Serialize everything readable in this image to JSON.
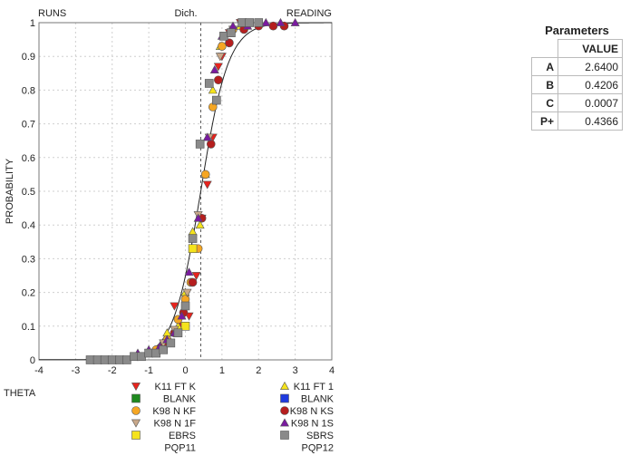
{
  "chart_data": {
    "type": "scatter",
    "title": "",
    "corner_labels": {
      "left": "RUNS",
      "center": "Dich.",
      "right": "READING"
    },
    "xlabel": "THETA",
    "ylabel": "PROBABILITY",
    "xlim": [
      -4,
      4
    ],
    "ylim": [
      0,
      1
    ],
    "x_ticks": [
      "-4",
      "-3",
      "-2",
      "-1",
      "0",
      "1",
      "2",
      "3",
      "4"
    ],
    "y_ticks": [
      "0",
      "0.1",
      "0.2",
      "0.3",
      "0.4",
      "0.5",
      "0.6",
      "0.7",
      "0.8",
      "0.9",
      "1"
    ],
    "grid": true,
    "reference_line_x": 0.42,
    "curve": {
      "a": 2.64,
      "b": 0.4206,
      "c": 0.0007
    },
    "series": [
      {
        "name": "K11 FT K",
        "marker": "triangle-down",
        "color": "#e8231d",
        "x": [
          -0.3,
          -0.1,
          0.1,
          0.3,
          0.45,
          0.6,
          0.75,
          0.9,
          1.0,
          1.2,
          1.5
        ],
        "y": [
          0.16,
          0.1,
          0.13,
          0.25,
          0.42,
          0.52,
          0.66,
          0.87,
          0.9,
          0.97,
          1.0
        ]
      },
      {
        "name": "K11 FT 1",
        "marker": "triangle-up",
        "color": "#f5e31c",
        "x": [
          -0.5,
          -0.2,
          0.0,
          0.2,
          0.4,
          0.55,
          0.75,
          0.95,
          1.2,
          1.5
        ],
        "y": [
          0.08,
          0.1,
          0.2,
          0.38,
          0.4,
          0.55,
          0.8,
          0.93,
          0.97,
          0.99
        ]
      },
      {
        "name": "BLANK",
        "marker": "square",
        "color": "#1e8a1e",
        "x": [],
        "y": []
      },
      {
        "name": "BLANK",
        "marker": "square",
        "color": "#1e3adf",
        "x": [],
        "y": []
      },
      {
        "name": "K98 N KF",
        "marker": "circle",
        "color": "#f5a623",
        "x": [
          -0.8,
          -0.5,
          -0.2,
          0.0,
          0.15,
          0.35,
          0.55,
          0.75,
          1.0,
          1.3
        ],
        "y": [
          0.03,
          0.06,
          0.12,
          0.18,
          0.23,
          0.33,
          0.55,
          0.75,
          0.93,
          0.98
        ]
      },
      {
        "name": "K98 N KS",
        "marker": "circle",
        "color": "#b51e1e",
        "x": [
          -0.6,
          -0.3,
          -0.05,
          0.2,
          0.45,
          0.7,
          0.9,
          1.2,
          1.6,
          2.0,
          2.4,
          2.7
        ],
        "y": [
          0.04,
          0.08,
          0.14,
          0.23,
          0.42,
          0.64,
          0.83,
          0.94,
          0.98,
          0.99,
          0.99,
          0.99
        ]
      },
      {
        "name": "K98 N 1F",
        "marker": "triangle-down",
        "color": "#c8a88a",
        "x": [
          -1.0,
          -0.6,
          -0.3,
          0.05,
          0.35,
          0.65,
          0.95,
          1.3,
          1.7
        ],
        "y": [
          0.02,
          0.05,
          0.09,
          0.2,
          0.43,
          0.66,
          0.9,
          0.98,
          1.0
        ]
      },
      {
        "name": "K98 N 1S",
        "marker": "triangle-up",
        "color": "#7a1aa0",
        "x": [
          -1.3,
          -1.0,
          -0.7,
          -0.5,
          -0.3,
          -0.1,
          0.1,
          0.35,
          0.6,
          0.8,
          1.0,
          1.3,
          1.7,
          2.2,
          2.6,
          3.0
        ],
        "y": [
          0.02,
          0.03,
          0.04,
          0.06,
          0.08,
          0.13,
          0.26,
          0.42,
          0.66,
          0.86,
          0.96,
          0.99,
          0.99,
          1.0,
          1.0,
          1.0
        ]
      },
      {
        "name": "EBRS",
        "marker": "square",
        "color": "#f5e31c",
        "x": [
          0.0,
          0.2
        ],
        "y": [
          0.1,
          0.33
        ]
      },
      {
        "name": "SBRS",
        "marker": "square",
        "color": "#8a8a8a",
        "x": [
          -2.6,
          -2.4,
          -2.2,
          -2.0,
          -1.8,
          -1.6,
          -1.4,
          -1.2,
          -1.0,
          -0.8,
          -0.6,
          -0.4,
          -0.2,
          0.0,
          0.2,
          0.4,
          0.65,
          0.85,
          1.05,
          1.25,
          1.55,
          1.75,
          2.0
        ],
        "y": [
          0.0,
          0.0,
          0.0,
          0.0,
          0.0,
          0.0,
          0.01,
          0.01,
          0.02,
          0.02,
          0.03,
          0.05,
          0.08,
          0.16,
          0.36,
          0.64,
          0.82,
          0.77,
          0.96,
          0.97,
          1.0,
          1.0,
          1.0
        ]
      }
    ],
    "legend": {
      "left": [
        "K11 FT K",
        "BLANK",
        "K98 N KF",
        "K98 N 1F",
        "EBRS",
        "PQP11"
      ],
      "right": [
        "K11 FT 1",
        "BLANK",
        "K98 N KS",
        "K98 N 1S",
        "SBRS",
        "PQP12"
      ]
    }
  },
  "parameters": {
    "title": "Parameters",
    "column_header": "VALUE",
    "rows": [
      {
        "key": "A",
        "value": "2.6400"
      },
      {
        "key": "B",
        "value": "0.4206"
      },
      {
        "key": "C",
        "value": "0.0007"
      },
      {
        "key": "P+",
        "value": "0.4366"
      }
    ]
  }
}
